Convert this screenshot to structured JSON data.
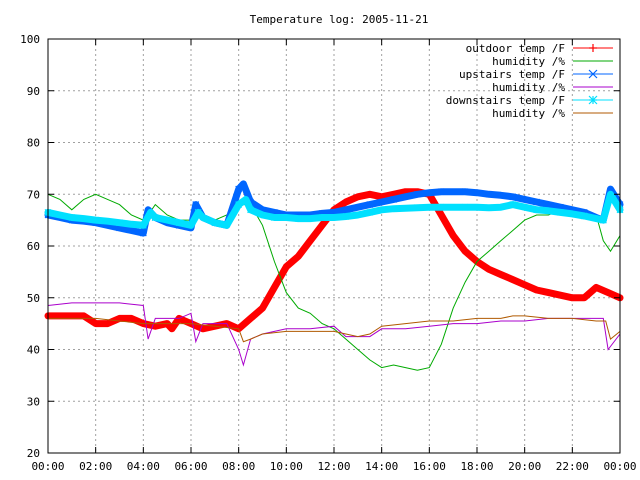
{
  "chart_data": {
    "type": "line",
    "title": "Temperature log: 2005-11-21",
    "xlabel": "",
    "ylabel": "",
    "xlim": [
      0,
      24
    ],
    "ylim": [
      20,
      100
    ],
    "grid": true,
    "legend_position": "top-right",
    "x_tick_labels": [
      "00:00",
      "02:00",
      "04:00",
      "06:00",
      "08:00",
      "10:00",
      "12:00",
      "14:00",
      "16:00",
      "18:00",
      "20:00",
      "22:00",
      "00:00"
    ],
    "y_tick_labels": [
      "20",
      "30",
      "40",
      "50",
      "60",
      "70",
      "80",
      "90",
      "100"
    ],
    "series": [
      {
        "name": "outdoor temp /F",
        "color": "#ff0000",
        "marker": "plus",
        "points": [
          [
            0,
            46.5
          ],
          [
            1,
            46.5
          ],
          [
            1.5,
            46.5
          ],
          [
            2,
            45
          ],
          [
            2.5,
            45
          ],
          [
            3,
            46
          ],
          [
            3.5,
            46
          ],
          [
            4,
            45
          ],
          [
            4.5,
            44.5
          ],
          [
            5,
            45
          ],
          [
            5.2,
            44
          ],
          [
            5.5,
            46
          ],
          [
            6,
            45
          ],
          [
            6.5,
            44
          ],
          [
            7,
            44.5
          ],
          [
            7.5,
            45
          ],
          [
            8,
            44
          ],
          [
            8.5,
            46
          ],
          [
            9,
            48
          ],
          [
            9.5,
            52
          ],
          [
            10,
            56
          ],
          [
            10.5,
            58
          ],
          [
            11,
            61
          ],
          [
            11.5,
            64
          ],
          [
            12,
            67
          ],
          [
            12.5,
            68.5
          ],
          [
            13,
            69.5
          ],
          [
            13.5,
            70
          ],
          [
            14,
            69.5
          ],
          [
            14.5,
            70
          ],
          [
            15,
            70.5
          ],
          [
            15.5,
            70.5
          ],
          [
            16,
            70
          ],
          [
            16.5,
            66
          ],
          [
            17,
            62
          ],
          [
            17.5,
            59
          ],
          [
            18,
            57
          ],
          [
            18.5,
            55.5
          ],
          [
            19,
            54.5
          ],
          [
            19.5,
            53.5
          ],
          [
            20,
            52.5
          ],
          [
            20.5,
            51.5
          ],
          [
            21,
            51
          ],
          [
            21.5,
            50.5
          ],
          [
            22,
            50
          ],
          [
            22.5,
            50
          ],
          [
            23,
            52
          ],
          [
            23.5,
            51
          ],
          [
            24,
            50
          ]
        ]
      },
      {
        "name": "humidity /%",
        "color": "#00aa00",
        "marker": "",
        "points": [
          [
            0,
            70
          ],
          [
            0.5,
            69
          ],
          [
            1,
            67
          ],
          [
            1.5,
            69
          ],
          [
            2,
            70
          ],
          [
            2.5,
            69
          ],
          [
            3,
            68
          ],
          [
            3.5,
            66
          ],
          [
            4,
            65
          ],
          [
            4.2,
            66
          ],
          [
            4.5,
            68
          ],
          [
            5,
            66
          ],
          [
            5.5,
            65
          ],
          [
            6,
            65
          ],
          [
            6.5,
            66
          ],
          [
            7,
            65
          ],
          [
            7.5,
            66
          ],
          [
            8,
            68
          ],
          [
            8.5,
            68
          ],
          [
            9,
            64
          ],
          [
            9.5,
            57
          ],
          [
            10,
            51
          ],
          [
            10.5,
            48
          ],
          [
            11,
            47
          ],
          [
            11.5,
            45
          ],
          [
            12,
            44
          ],
          [
            12.5,
            42
          ],
          [
            13,
            40
          ],
          [
            13.5,
            38
          ],
          [
            14,
            36.5
          ],
          [
            14.5,
            37
          ],
          [
            15,
            36.5
          ],
          [
            15.5,
            36
          ],
          [
            16,
            36.5
          ],
          [
            16.5,
            41
          ],
          [
            17,
            48
          ],
          [
            17.5,
            53
          ],
          [
            18,
            57
          ],
          [
            18.5,
            59
          ],
          [
            19,
            61
          ],
          [
            19.5,
            63
          ],
          [
            20,
            65
          ],
          [
            20.5,
            66
          ],
          [
            21,
            66
          ],
          [
            21.5,
            67
          ],
          [
            22,
            67.5
          ],
          [
            22.5,
            66
          ],
          [
            23,
            66
          ],
          [
            23.3,
            61
          ],
          [
            23.6,
            59
          ],
          [
            24,
            62
          ]
        ]
      },
      {
        "name": "upstairs temp /F",
        "color": "#0066ff",
        "marker": "x",
        "points": [
          [
            0,
            66
          ],
          [
            0.5,
            65.5
          ],
          [
            1,
            65
          ],
          [
            1.5,
            64.8
          ],
          [
            2,
            64.5
          ],
          [
            2.5,
            64
          ],
          [
            3,
            63.5
          ],
          [
            3.5,
            63
          ],
          [
            4,
            62.5
          ],
          [
            4.2,
            67
          ],
          [
            4.5,
            65.5
          ],
          [
            5,
            64.5
          ],
          [
            5.5,
            64
          ],
          [
            6,
            63.5
          ],
          [
            6.2,
            68
          ],
          [
            6.5,
            65.5
          ],
          [
            7,
            64.5
          ],
          [
            7.5,
            64
          ],
          [
            8,
            71
          ],
          [
            8.2,
            72
          ],
          [
            8.5,
            68.5
          ],
          [
            9,
            67
          ],
          [
            9.5,
            66.5
          ],
          [
            10,
            66
          ],
          [
            10.5,
            66
          ],
          [
            11,
            66
          ],
          [
            11.5,
            66.3
          ],
          [
            12,
            66.5
          ],
          [
            12.5,
            67
          ],
          [
            13,
            67.5
          ],
          [
            13.5,
            68
          ],
          [
            14,
            68.5
          ],
          [
            14.5,
            69
          ],
          [
            15,
            69.5
          ],
          [
            15.5,
            70
          ],
          [
            16,
            70.3
          ],
          [
            16.5,
            70.5
          ],
          [
            17,
            70.5
          ],
          [
            17.5,
            70.5
          ],
          [
            18,
            70.3
          ],
          [
            18.5,
            70
          ],
          [
            19,
            69.8
          ],
          [
            19.5,
            69.5
          ],
          [
            20,
            69
          ],
          [
            20.5,
            68.5
          ],
          [
            21,
            68
          ],
          [
            21.5,
            67.5
          ],
          [
            22,
            67
          ],
          [
            22.5,
            66.5
          ],
          [
            23,
            65.5
          ],
          [
            23.3,
            65
          ],
          [
            23.6,
            71
          ],
          [
            24,
            68
          ]
        ]
      },
      {
        "name": "humidity /%",
        "color": "#aa00cc",
        "marker": "",
        "points": [
          [
            0,
            48.5
          ],
          [
            1,
            49
          ],
          [
            2,
            49
          ],
          [
            3,
            49
          ],
          [
            4,
            48.5
          ],
          [
            4.2,
            42
          ],
          [
            4.5,
            46
          ],
          [
            5,
            46
          ],
          [
            5.5,
            46
          ],
          [
            6,
            47
          ],
          [
            6.2,
            41.5
          ],
          [
            6.5,
            45
          ],
          [
            7,
            45
          ],
          [
            7.5,
            45
          ],
          [
            8,
            40
          ],
          [
            8.2,
            37
          ],
          [
            8.5,
            42
          ],
          [
            9,
            43
          ],
          [
            9.5,
            43.5
          ],
          [
            10,
            44
          ],
          [
            11,
            44
          ],
          [
            12,
            44.5
          ],
          [
            12.5,
            42.5
          ],
          [
            13,
            42.5
          ],
          [
            13.5,
            42.5
          ],
          [
            14,
            44
          ],
          [
            15,
            44
          ],
          [
            16,
            44.5
          ],
          [
            17,
            45
          ],
          [
            18,
            45
          ],
          [
            19,
            45.5
          ],
          [
            20,
            45.5
          ],
          [
            21,
            46
          ],
          [
            22,
            46
          ],
          [
            23,
            46
          ],
          [
            23.3,
            46
          ],
          [
            23.5,
            40
          ],
          [
            24,
            43
          ]
        ]
      },
      {
        "name": "downstairs temp /F",
        "color": "#00e0ff",
        "marker": "star",
        "points": [
          [
            0,
            66.5
          ],
          [
            0.5,
            66
          ],
          [
            1,
            65.5
          ],
          [
            1.5,
            65.3
          ],
          [
            2,
            65
          ],
          [
            2.5,
            64.8
          ],
          [
            3,
            64.5
          ],
          [
            3.5,
            64.2
          ],
          [
            4,
            64
          ],
          [
            4.3,
            66.5
          ],
          [
            4.5,
            65.5
          ],
          [
            5,
            65
          ],
          [
            5.5,
            64.5
          ],
          [
            6,
            64
          ],
          [
            6.3,
            66.5
          ],
          [
            6.5,
            65.5
          ],
          [
            7,
            64.5
          ],
          [
            7.5,
            64
          ],
          [
            8,
            68
          ],
          [
            8.3,
            69
          ],
          [
            8.5,
            67
          ],
          [
            9,
            66
          ],
          [
            9.5,
            65.5
          ],
          [
            10,
            65.5
          ],
          [
            10.5,
            65.3
          ],
          [
            11,
            65.3
          ],
          [
            11.5,
            65.5
          ],
          [
            12,
            65.5
          ],
          [
            12.5,
            65.7
          ],
          [
            13,
            66
          ],
          [
            13.5,
            66.5
          ],
          [
            14,
            67
          ],
          [
            14.5,
            67.2
          ],
          [
            15,
            67.3
          ],
          [
            15.5,
            67.4
          ],
          [
            16,
            67.5
          ],
          [
            16.5,
            67.5
          ],
          [
            17,
            67.5
          ],
          [
            17.5,
            67.5
          ],
          [
            18,
            67.5
          ],
          [
            18.5,
            67.4
          ],
          [
            19,
            67.5
          ],
          [
            19.5,
            68
          ],
          [
            20,
            67.5
          ],
          [
            20.5,
            67
          ],
          [
            21,
            66.8
          ],
          [
            21.5,
            66.5
          ],
          [
            22,
            66.2
          ],
          [
            22.5,
            65.8
          ],
          [
            23,
            65.3
          ],
          [
            23.3,
            65
          ],
          [
            23.6,
            70
          ],
          [
            24,
            67
          ]
        ]
      },
      {
        "name": "humidity /%",
        "color": "#b05a00",
        "marker": "",
        "points": [
          [
            0,
            46
          ],
          [
            1,
            46
          ],
          [
            2,
            46
          ],
          [
            3,
            45.5
          ],
          [
            4,
            45
          ],
          [
            5,
            45
          ],
          [
            6,
            45
          ],
          [
            7,
            44.5
          ],
          [
            8,
            44
          ],
          [
            8.2,
            41.5
          ],
          [
            8.5,
            42
          ],
          [
            9,
            43
          ],
          [
            10,
            43.5
          ],
          [
            11,
            43.5
          ],
          [
            12,
            43.5
          ],
          [
            12.5,
            43
          ],
          [
            13,
            42.5
          ],
          [
            13.5,
            43
          ],
          [
            14,
            44.5
          ],
          [
            15,
            45
          ],
          [
            16,
            45.5
          ],
          [
            17,
            45.5
          ],
          [
            18,
            46
          ],
          [
            19,
            46
          ],
          [
            19.5,
            46.5
          ],
          [
            20,
            46.5
          ],
          [
            21,
            46
          ],
          [
            22,
            46
          ],
          [
            23,
            45.5
          ],
          [
            23.4,
            45.5
          ],
          [
            23.6,
            42
          ],
          [
            24,
            43.5
          ]
        ]
      }
    ]
  }
}
